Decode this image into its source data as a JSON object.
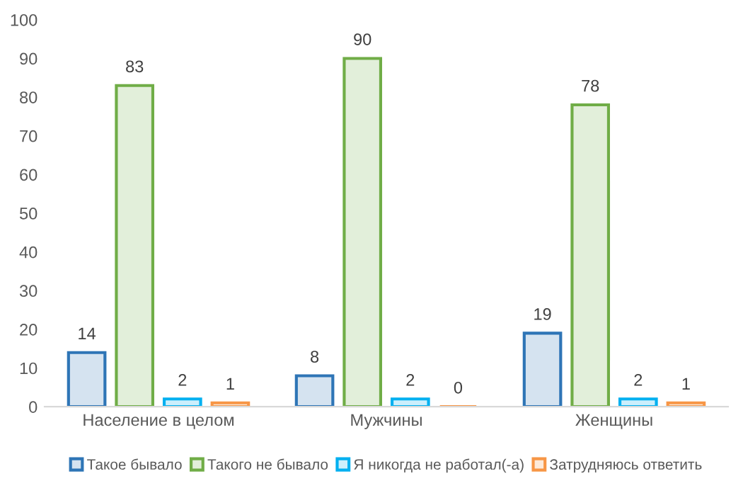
{
  "chart_data": {
    "type": "bar",
    "categories": [
      "Население в целом",
      "Мужчины",
      "Женщины"
    ],
    "series": [
      {
        "name": "Такое бывало",
        "color": "#2e75b6",
        "values": [
          14,
          8,
          19
        ]
      },
      {
        "name": "Такого не бывало",
        "color": "#70ad47",
        "values": [
          83,
          90,
          78
        ]
      },
      {
        "name": "Я никогда не работал(-а)",
        "color": "#00b0f0",
        "values": [
          2,
          2,
          2
        ]
      },
      {
        "name": "Затрудняюсь ответить",
        "color": "#f79646",
        "values": [
          1,
          0,
          1
        ]
      }
    ],
    "ylim": [
      0,
      100
    ],
    "yticks": [
      0,
      10,
      20,
      30,
      40,
      50,
      60,
      70,
      80,
      90,
      100
    ],
    "grid": false,
    "legend": "bottom",
    "data_labels": true
  }
}
